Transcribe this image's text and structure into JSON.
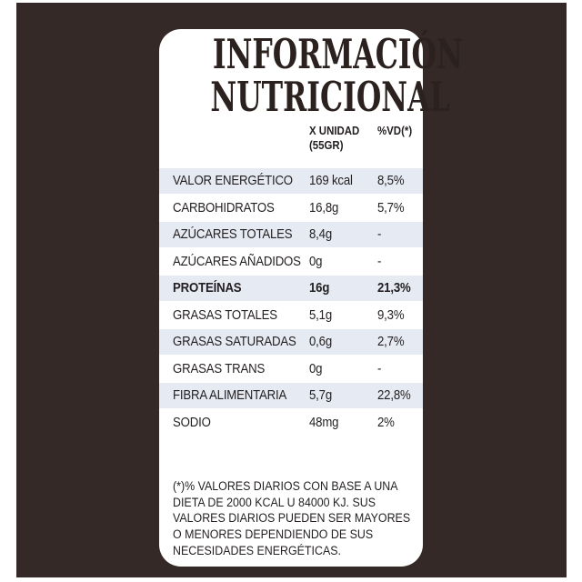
{
  "colors": {
    "background": "#352927",
    "panel": "#ffffff",
    "stripe": "#e6eaf3",
    "text": "#231f20"
  },
  "header": {
    "title_line1": "INFORMACIÓN",
    "title_line2": "NUTRICIONAL"
  },
  "columns": {
    "unit_line1": "X UNIDAD",
    "unit_line2": "(55GR)",
    "dv_label": "%VD(*)"
  },
  "table": {
    "rows": [
      {
        "label": "VALOR ENERGÉTICO",
        "value": "169 kcal",
        "dv": "8,5%",
        "striped": true,
        "bold": false
      },
      {
        "label": "CARBOHIDRATOS",
        "value": "16,8g",
        "dv": "5,7%",
        "striped": false,
        "bold": false
      },
      {
        "label": "AZÚCARES TOTALES",
        "value": "8,4g",
        "dv": "-",
        "striped": true,
        "bold": false
      },
      {
        "label": "AZÚCARES AÑADIDOS",
        "value": "0g",
        "dv": "-",
        "striped": false,
        "bold": false
      },
      {
        "label": "PROTEÍNAS",
        "value": "16g",
        "dv": "21,3%",
        "striped": true,
        "bold": true
      },
      {
        "label": "GRASAS TOTALES",
        "value": "5,1g",
        "dv": "9,3%",
        "striped": false,
        "bold": false
      },
      {
        "label": "GRASAS SATURADAS",
        "value": "0,6g",
        "dv": "2,7%",
        "striped": true,
        "bold": false
      },
      {
        "label": "GRASAS TRANS",
        "value": "0g",
        "dv": "-",
        "striped": false,
        "bold": false
      },
      {
        "label": "FIBRA ALIMENTARIA",
        "value": "5,7g",
        "dv": "22,8%",
        "striped": true,
        "bold": false
      },
      {
        "label": "SODIO",
        "value": "48mg",
        "dv": "2%",
        "striped": false,
        "bold": false
      }
    ]
  },
  "footnote": {
    "lines": [
      "(*)% VALORES DIARIOS CON BASE A UNA",
      "DIETA DE 2000 KCAL U 84000 KJ. SUS",
      "VALORES DIARIOS PUEDEN SER MAYORES",
      "O MENORES DEPENDIENDO DE SUS",
      "NECESIDADES ENERGÉTICAS."
    ]
  }
}
